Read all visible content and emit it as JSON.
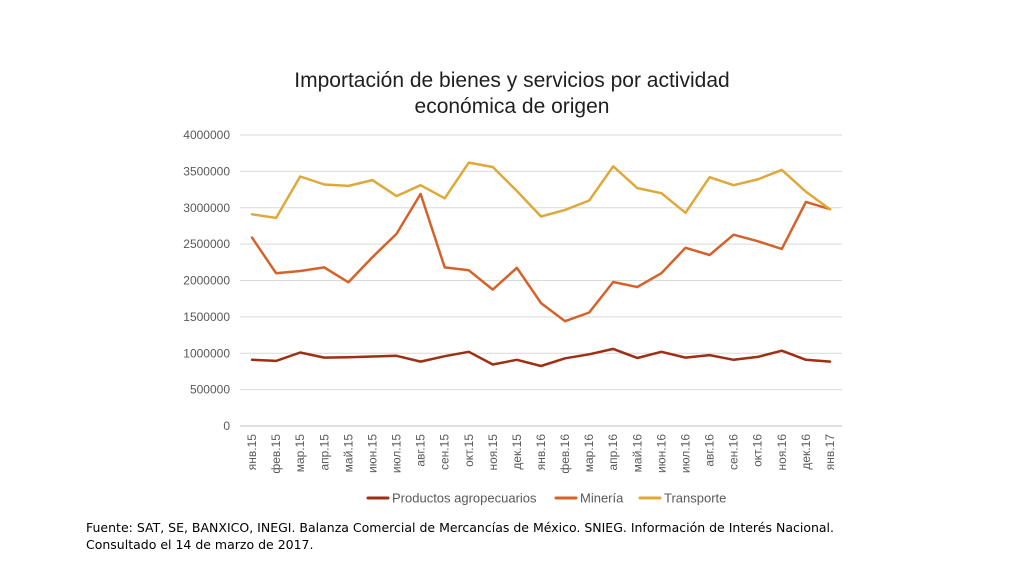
{
  "chart_data": {
    "type": "line",
    "title_lines": [
      "Importación de bienes y servicios por actividad",
      "económica de origen"
    ],
    "xlabel": "",
    "ylabel": "",
    "ylim": [
      0,
      4000000
    ],
    "yticks": [
      "0",
      "500000",
      "1000000",
      "1500000",
      "2000000",
      "2500000",
      "3000000",
      "3500000",
      "4000000"
    ],
    "grid": "horizontal",
    "legend_position": "bottom",
    "categories": [
      "янв.15",
      "фев.15",
      "мар.15",
      "апр.15",
      "май.15",
      "июн.15",
      "июл.15",
      "авг.15",
      "сен.15",
      "окт.15",
      "ноя.15",
      "дек.15",
      "янв.16",
      "фев.16",
      "мар.16",
      "апр.16",
      "май.16",
      "июн.16",
      "июл.16",
      "авг.16",
      "сен.16",
      "окт.16",
      "ноя.16",
      "дек.16",
      "янв.17"
    ],
    "series": [
      {
        "name": "Productos agropecuarios",
        "color": "#9c2f14",
        "values": [
          910000,
          895000,
          1010000,
          940000,
          945000,
          955000,
          965000,
          885000,
          960000,
          1020000,
          845000,
          910000,
          825000,
          930000,
          985000,
          1060000,
          935000,
          1020000,
          940000,
          975000,
          910000,
          950000,
          1035000,
          910000,
          885000
        ]
      },
      {
        "name": "Minería",
        "color": "#d4622a",
        "values": [
          2590000,
          2100000,
          2130000,
          2180000,
          1975000,
          2320000,
          2640000,
          3190000,
          2180000,
          2140000,
          1875000,
          2175000,
          1690000,
          1440000,
          1560000,
          1980000,
          1910000,
          2100000,
          2450000,
          2350000,
          2630000,
          2540000,
          2435000,
          3080000,
          2980000
        ]
      },
      {
        "name": "Transporte",
        "color": "#e0a83a",
        "values": [
          2910000,
          2860000,
          3430000,
          3320000,
          3300000,
          3380000,
          3160000,
          3310000,
          3130000,
          3620000,
          3560000,
          3230000,
          2880000,
          2970000,
          3100000,
          3570000,
          3270000,
          3200000,
          2930000,
          3420000,
          3310000,
          3390000,
          3520000,
          3220000,
          2980000
        ]
      }
    ]
  },
  "source_note": [
    "Fuente: SAT, SE, BANXICO, INEGI. Balanza Comercial de Mercancías de México. SNIEG. Información de Interés Nacional.",
    "Consultado el 14 de marzo de 2017."
  ]
}
